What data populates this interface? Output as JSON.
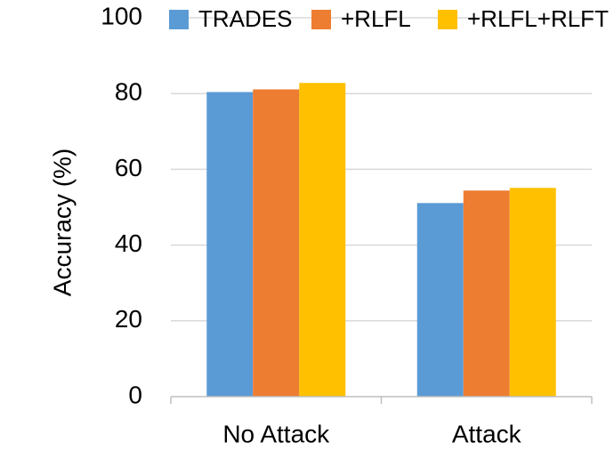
{
  "chart_data": {
    "type": "bar",
    "y_label": "Accuracy  (%)",
    "categories": [
      "No Attack",
      "Attack"
    ],
    "series": [
      {
        "name": "TRADES",
        "color": "#5b9bd5",
        "values": [
          80.4,
          51.1
        ]
      },
      {
        "name": "+RLFL",
        "color": "#ed7d31",
        "values": [
          81.1,
          54.4
        ]
      },
      {
        "name": "+RLFL+RLFT",
        "color": "#ffc000",
        "values": [
          82.8,
          55.1
        ]
      }
    ],
    "ylim": [
      0,
      100
    ],
    "yticks": [
      0,
      20,
      40,
      60,
      80,
      100
    ],
    "grid": true,
    "legend": "top"
  }
}
